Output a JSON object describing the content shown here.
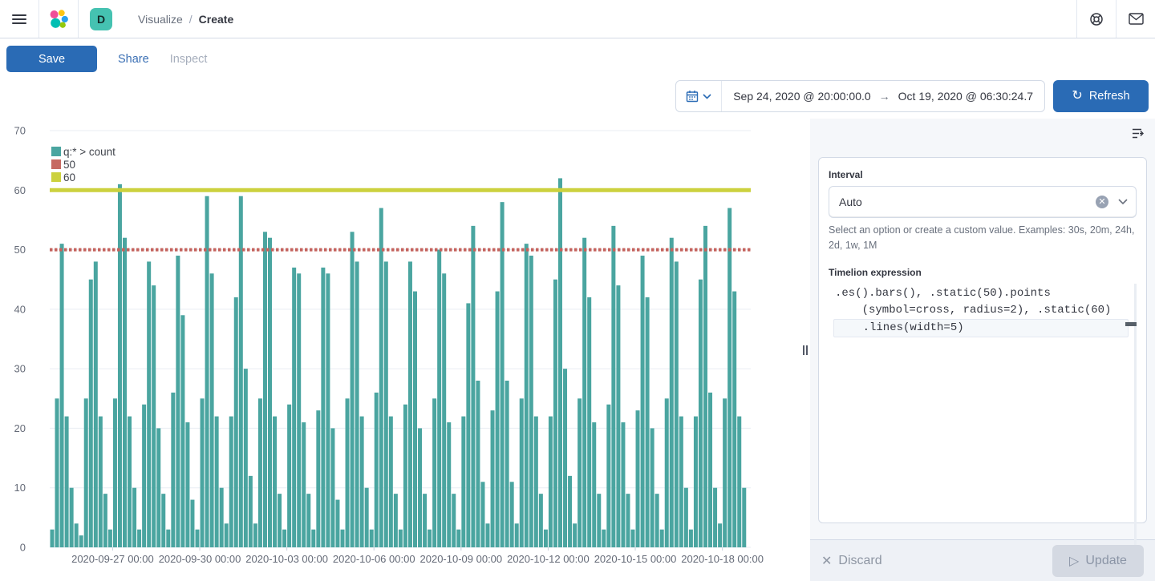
{
  "header": {
    "space_badge": "D",
    "breadcrumb_parent": "Visualize",
    "breadcrumb_separator": "/",
    "breadcrumb_current": "Create"
  },
  "toolbar": {
    "save_label": "Save",
    "share_label": "Share",
    "inspect_label": "Inspect"
  },
  "time_picker": {
    "start": "Sep 24, 2020 @ 20:00:00.0",
    "arrow": "→",
    "end": "Oct 19, 2020 @ 06:30:24.7",
    "refresh_label": "Refresh",
    "refresh_icon": "↻"
  },
  "panel": {
    "interval_label": "Interval",
    "interval_value": "Auto",
    "interval_clear": "✕",
    "interval_help": "Select an option or create a custom value. Examples: 30s, 20m, 24h, 2d, 1w, 1M",
    "expression_label": "Timelion expression",
    "expression_lines": [
      ".es().bars(), .static(50).points",
      "    (symbol=cross, radius=2), .static(60)",
      "    .lines(width=5)"
    ],
    "discard_icon": "✕",
    "discard_label": "Discard",
    "update_icon": "▷",
    "update_label": "Update"
  },
  "colors": {
    "primary_blue": "#2a6bb5",
    "badge_teal": "#45c2b1",
    "bar_teal": "#4aa5a0",
    "static50_red": "#c4625c",
    "static60_yellow": "#ccd13e",
    "grid": "#e9edf3",
    "axis_text": "#646a77",
    "border": "#d3dae6"
  },
  "chart_data": {
    "type": "bar",
    "title": "",
    "xlabel": "",
    "ylabel": "",
    "ylim": [
      0,
      70
    ],
    "yticks": [
      0,
      10,
      20,
      30,
      40,
      50,
      60,
      70
    ],
    "grid": true,
    "legend_position": "top-left",
    "legend": [
      {
        "label": "q:* > count",
        "color": "#4aa5a0"
      },
      {
        "label": "50",
        "color": "#c66a62"
      },
      {
        "label": "60",
        "color": "#ccd13e"
      }
    ],
    "xticklabels": [
      "2020-09-27 00:00",
      "2020-09-30 00:00",
      "2020-10-03 00:00",
      "2020-10-06 00:00",
      "2020-10-09 00:00",
      "2020-10-12 00:00",
      "2020-10-15 00:00",
      "2020-10-18 00:00"
    ],
    "series": [
      {
        "name": "q:* > count",
        "type": "bar",
        "color": "#4aa5a0",
        "start": "2020-09-24 20:00",
        "end": "2020-10-19 06:30",
        "interval": "4h",
        "values": [
          3,
          25,
          51,
          22,
          10,
          4,
          2,
          25,
          45,
          48,
          22,
          9,
          3,
          25,
          61,
          52,
          22,
          10,
          3,
          24,
          48,
          44,
          20,
          9,
          3,
          26,
          49,
          39,
          21,
          8,
          3,
          25,
          59,
          46,
          22,
          10,
          4,
          22,
          42,
          59,
          30,
          12,
          4,
          25,
          53,
          52,
          22,
          9,
          3,
          24,
          47,
          46,
          21,
          9,
          3,
          23,
          47,
          46,
          20,
          8,
          3,
          25,
          53,
          48,
          22,
          10,
          3,
          26,
          57,
          48,
          22,
          9,
          3,
          24,
          48,
          43,
          20,
          9,
          3,
          25,
          50,
          46,
          21,
          9,
          3,
          22,
          41,
          54,
          28,
          11,
          4,
          23,
          43,
          58,
          28,
          11,
          4,
          25,
          51,
          49,
          22,
          9,
          3,
          22,
          45,
          62,
          30,
          12,
          4,
          25,
          52,
          42,
          21,
          9,
          3,
          24,
          54,
          44,
          21,
          9,
          3,
          23,
          49,
          42,
          20,
          9,
          3,
          25,
          52,
          48,
          22,
          10,
          3,
          22,
          45,
          54,
          26,
          10,
          4,
          25,
          57,
          43,
          22,
          10,
          3,
          22,
          10
        ]
      },
      {
        "name": "50",
        "type": "points",
        "symbol": "cross",
        "radius": 2,
        "value": 50,
        "color": "#c4625c"
      },
      {
        "name": "60",
        "type": "line",
        "width": 5,
        "value": 60,
        "color": "#ccd13e"
      }
    ]
  }
}
